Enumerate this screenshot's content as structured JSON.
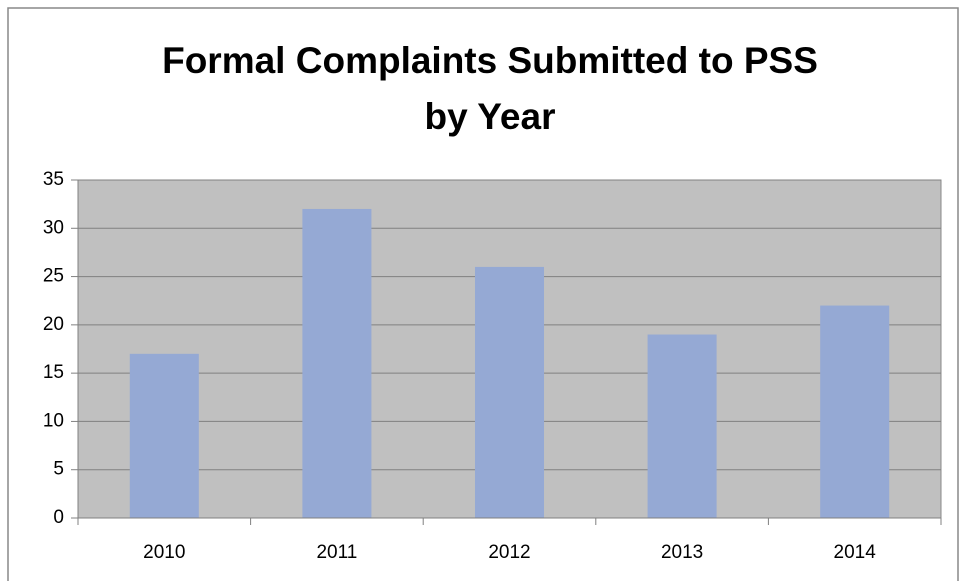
{
  "chart_data": {
    "type": "bar",
    "title": [
      "Formal Complaints Submitted to PSS",
      "by Year"
    ],
    "categories": [
      "2010",
      "2011",
      "2012",
      "2013",
      "2014"
    ],
    "values": [
      17,
      32,
      26,
      19,
      22
    ],
    "color": "#95a9d4",
    "ylim": [
      0,
      35
    ],
    "yticks": [
      0,
      5,
      10,
      15,
      20,
      25,
      30,
      35
    ],
    "grid": true
  }
}
